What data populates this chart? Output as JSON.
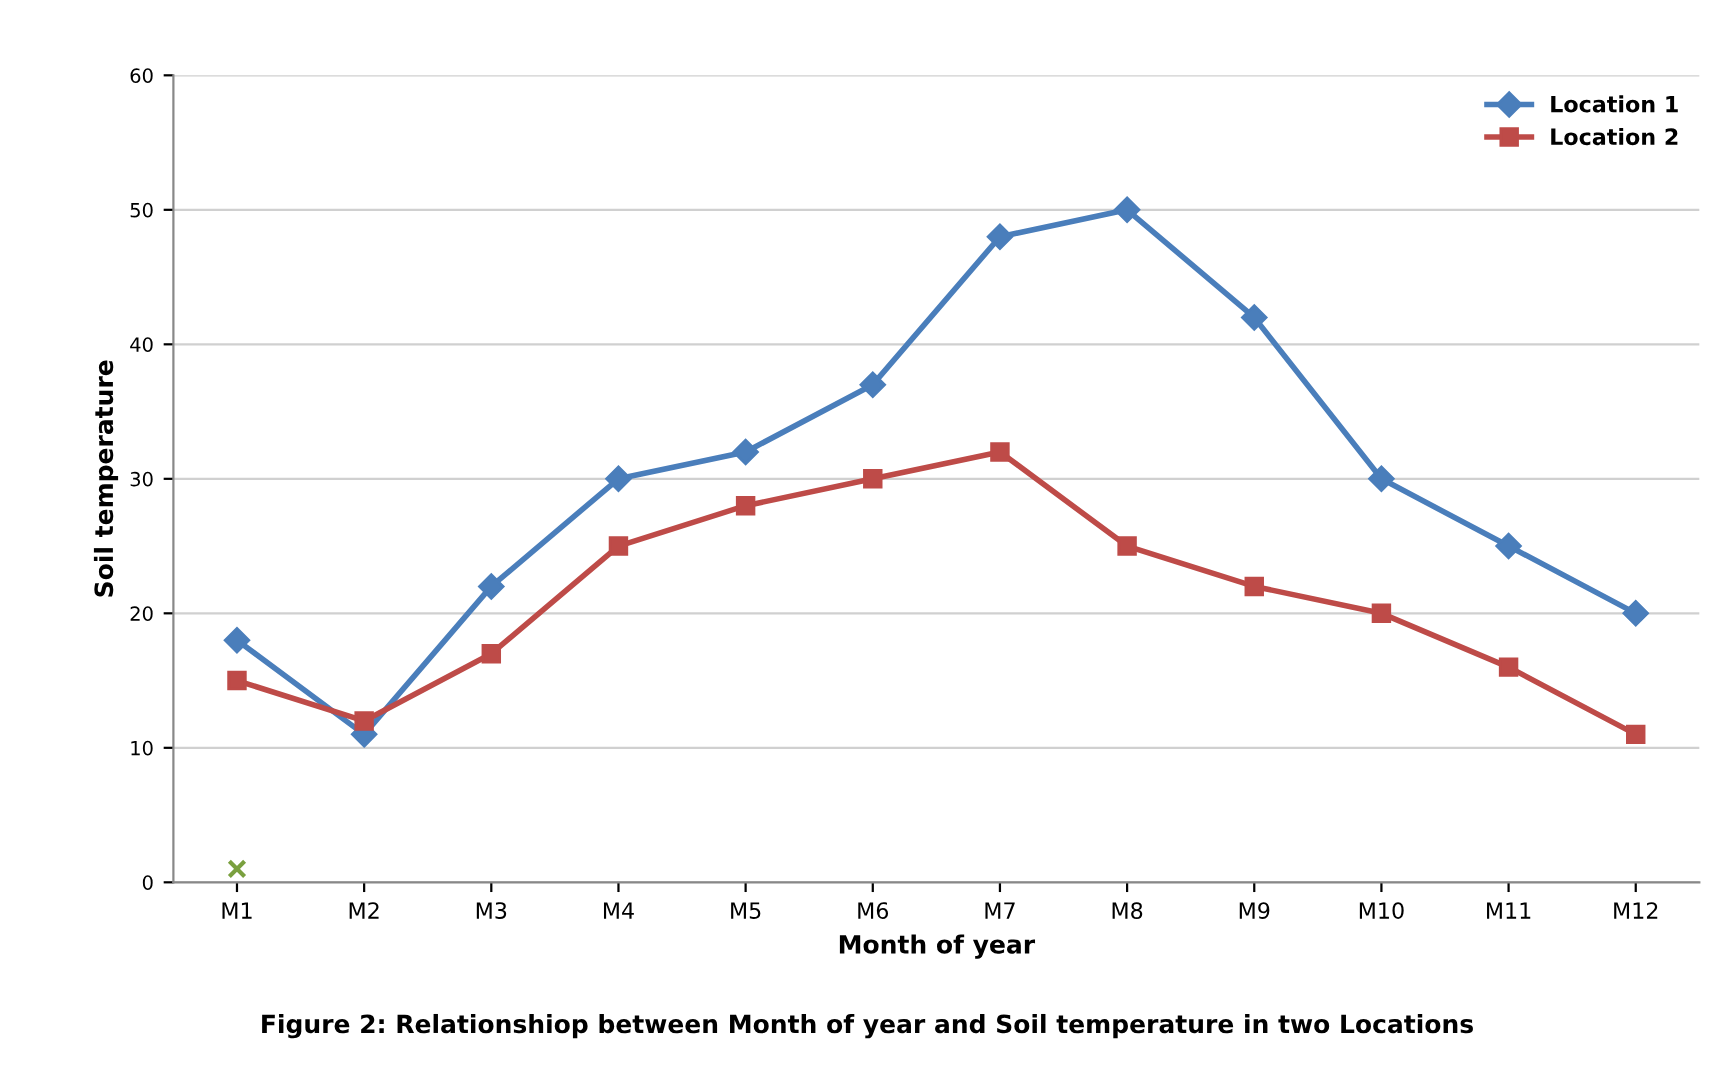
{
  "chart_data": {
    "type": "line",
    "xlabel": "Month of year",
    "ylabel": "Soil temperature",
    "categories": [
      "M1",
      "M2",
      "M3",
      "M4",
      "M5",
      "M6",
      "M7",
      "M8",
      "M9",
      "M10",
      "M11",
      "M12"
    ],
    "series": [
      {
        "name": "Location 1",
        "color": "#4a7ebb",
        "marker": "diamond",
        "values": [
          18,
          11,
          22,
          30,
          32,
          37,
          48,
          50,
          42,
          30,
          25,
          20
        ]
      },
      {
        "name": "Location 2",
        "color": "#be4b48",
        "marker": "square",
        "values": [
          15,
          12,
          17,
          25,
          28,
          30,
          32,
          25,
          22,
          20,
          16,
          11
        ]
      },
      {
        "type": "scatter",
        "color": "#7aa03f",
        "marker": "cross",
        "values": [
          1,
          null,
          null,
          null,
          null,
          null,
          null,
          null,
          null,
          null,
          null,
          null
        ]
      }
    ],
    "ylim": [
      0,
      60
    ],
    "yticks": [
      0,
      10,
      20,
      30,
      40,
      50,
      60
    ],
    "grid": "y",
    "legend": "top right",
    "annotations": [
      "Figure 2: Relationshiop between Month of year and Soil temperature in two Locations"
    ]
  }
}
